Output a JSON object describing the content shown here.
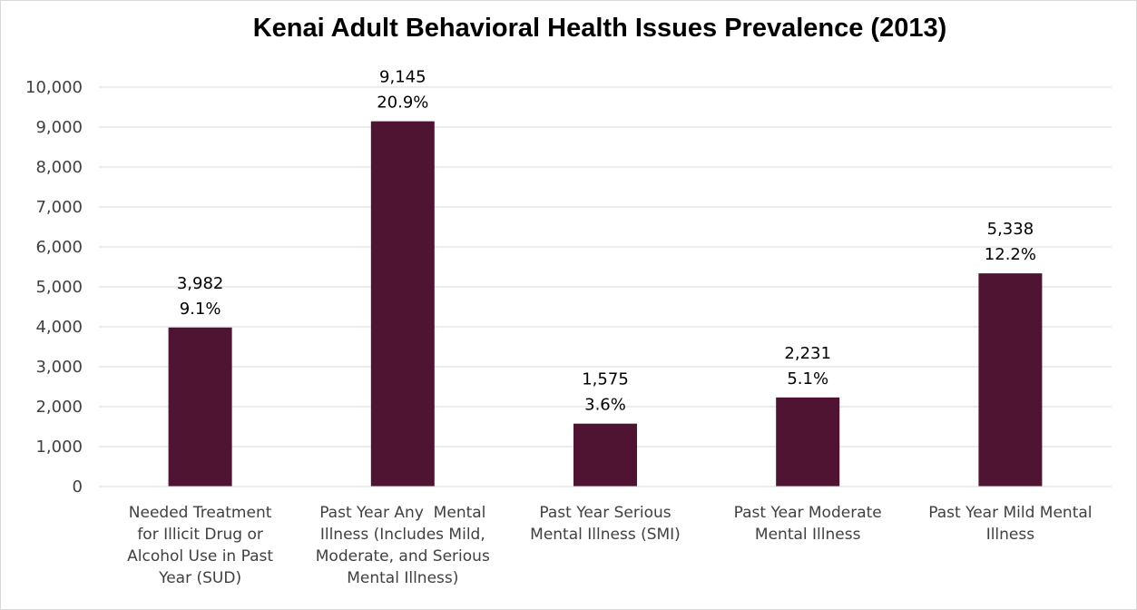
{
  "chart_data": {
    "type": "bar",
    "title": "Kenai Adult Behavioral Health Issues Prevalence (2013)",
    "xlabel": "",
    "ylabel": "",
    "ylim": [
      0,
      10000
    ],
    "yticks": [
      0,
      1000,
      2000,
      3000,
      4000,
      5000,
      6000,
      7000,
      8000,
      9000,
      10000
    ],
    "ytick_labels": [
      "0",
      "1,000",
      "2,000",
      "3,000",
      "4,000",
      "5,000",
      "6,000",
      "7,000",
      "8,000",
      "9,000",
      "10,000"
    ],
    "grid": true,
    "legend": "none",
    "bar_color": "#4f1432",
    "gridline_color": "#d9d9d9",
    "categories": [
      [
        "Needed Treatment",
        "for Illicit Drug or",
        "Alcohol Use in Past",
        "Year (SUD)"
      ],
      [
        "Past Year Any  Mental",
        "Illness (Includes Mild,",
        "Moderate, and Serious",
        "Mental Illness)"
      ],
      [
        "Past Year Serious",
        "Mental Illness (SMI)"
      ],
      [
        "Past Year Moderate",
        "Mental Illness"
      ],
      [
        "Past Year Mild Mental",
        "Illness"
      ]
    ],
    "values": [
      3982,
      9145,
      1575,
      2231,
      5338
    ],
    "value_labels": [
      "3,982",
      "9,145",
      "1,575",
      "2,231",
      "5,338"
    ],
    "percent_labels": [
      "9.1%",
      "20.9%",
      "3.6%",
      "5.1%",
      "12.2%"
    ]
  }
}
